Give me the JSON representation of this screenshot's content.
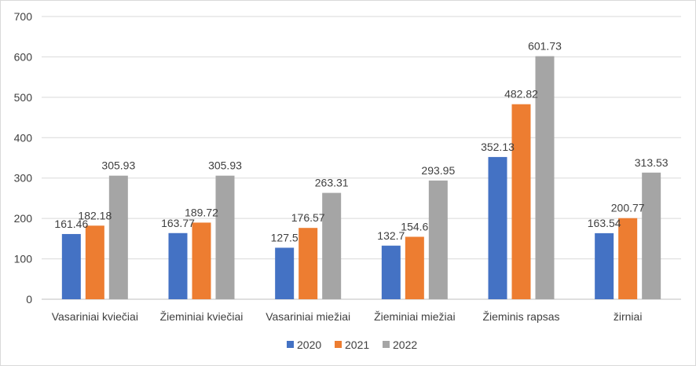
{
  "chart_data": {
    "type": "bar",
    "title": "",
    "xlabel": "",
    "ylabel": "",
    "ylim": [
      0,
      700
    ],
    "yticks": [
      0,
      100,
      200,
      300,
      400,
      500,
      600,
      700
    ],
    "grid": true,
    "legend_position": "bottom",
    "categories": [
      "Vasariniai kviečiai",
      "Žieminiai kviečiai",
      "Vasariniai miežiai",
      "Žieminiai miežiai",
      "Žieminis rapsas",
      "žirniai"
    ],
    "series": [
      {
        "name": "2020",
        "color": "#4472c4",
        "values": [
          161.46,
          163.77,
          127.5,
          132.7,
          352.13,
          163.54
        ]
      },
      {
        "name": "2021",
        "color": "#ed7d31",
        "values": [
          182.18,
          189.72,
          176.57,
          154.6,
          482.82,
          200.77
        ]
      },
      {
        "name": "2022",
        "color": "#a5a5a5",
        "values": [
          305.93,
          305.93,
          263.31,
          293.95,
          601.73,
          313.53
        ]
      }
    ]
  }
}
